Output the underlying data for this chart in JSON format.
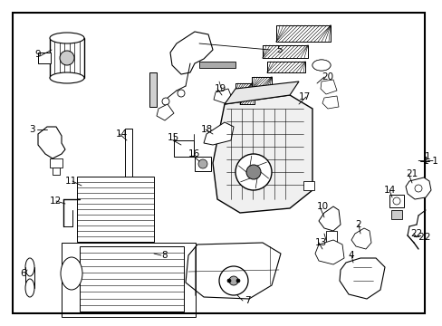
{
  "bg_color": "#ffffff",
  "border_color": "#000000",
  "line_color": "#000000",
  "fig_width": 4.89,
  "fig_height": 3.6,
  "dpi": 100,
  "font_size": 7.5
}
